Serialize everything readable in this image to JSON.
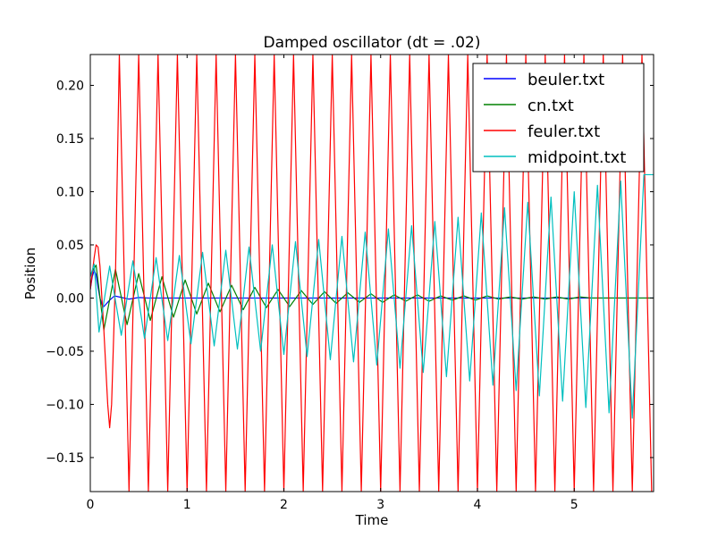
{
  "chart_data": {
    "type": "line",
    "title": "Damped oscillator (dt = .02)",
    "xlabel": "Time",
    "ylabel": "Position",
    "xlim": [
      0,
      5.82
    ],
    "ylim": [
      -0.182,
      0.229
    ],
    "xticks": [
      0,
      1,
      2,
      3,
      4,
      5
    ],
    "yticks": [
      -0.15,
      -0.1,
      -0.05,
      0.0,
      0.05,
      0.1,
      0.15,
      0.2
    ],
    "xtick_labels": [
      "0",
      "1",
      "2",
      "3",
      "4",
      "5"
    ],
    "ytick_labels": [
      "−0.15",
      "−0.10",
      "−0.05",
      "0.00",
      "0.05",
      "0.10",
      "0.15",
      "0.20"
    ],
    "legend_position": "top-right",
    "grid": false,
    "dt": 0.02,
    "series": [
      {
        "name": "beuler.txt",
        "color": "#0000ff",
        "x": [
          0,
          0.02,
          0.04,
          0.06,
          0.08,
          0.1,
          0.12,
          0.14,
          0.16,
          0.2,
          0.25,
          0.3,
          0.4,
          0.5,
          0.6,
          0.8,
          1.0,
          1.5,
          2.0,
          3.0,
          4.0,
          5.0,
          5.82
        ],
        "y": [
          0.008,
          0.02,
          0.026,
          0.022,
          0.01,
          0.0,
          -0.006,
          -0.008,
          -0.006,
          -0.002,
          0.002,
          0.001,
          -0.001,
          0.0005,
          0.0,
          0.0,
          0.0,
          0.0,
          0.0,
          0.0,
          0.0,
          0.0,
          0.0
        ]
      },
      {
        "name": "cn.txt",
        "color": "#008000",
        "x": [
          0,
          0.06,
          0.14,
          0.26,
          0.38,
          0.5,
          0.62,
          0.74,
          0.86,
          0.98,
          1.1,
          1.22,
          1.34,
          1.46,
          1.58,
          1.7,
          1.82,
          1.94,
          2.06,
          2.18,
          2.3,
          2.42,
          2.54,
          2.66,
          2.78,
          2.9,
          3.02,
          3.14,
          3.26,
          3.38,
          3.5,
          3.62,
          3.74,
          3.86,
          3.98,
          4.1,
          4.22,
          4.34,
          4.46,
          4.58,
          4.7,
          4.82,
          4.94,
          5.06,
          5.18,
          5.3,
          5.42,
          5.54,
          5.66,
          5.78,
          5.82
        ],
        "y": [
          0.022,
          0.031,
          -0.03,
          0.027,
          -0.025,
          0.023,
          -0.021,
          0.02,
          -0.018,
          0.017,
          -0.015,
          0.014,
          -0.013,
          0.012,
          -0.011,
          0.01,
          -0.009,
          0.008,
          -0.008,
          0.007,
          -0.006,
          0.006,
          -0.005,
          0.005,
          -0.004,
          0.004,
          -0.004,
          0.003,
          -0.003,
          0.003,
          -0.003,
          0.002,
          -0.002,
          0.002,
          -0.002,
          0.002,
          -0.001,
          0.001,
          -0.001,
          0.001,
          -0.001,
          0.001,
          -0.001,
          0.001,
          0.0,
          0.0,
          0.0,
          0.0,
          0.0,
          0.0,
          0.0
        ]
      },
      {
        "name": "feuler.txt",
        "color": "#ff0000",
        "x": [
          0,
          0.04,
          0.06,
          0.08,
          0.1,
          0.14,
          0.18,
          0.2,
          0.22,
          0.26,
          0.3,
          0.4,
          0.5,
          0.6,
          0.7,
          0.8,
          0.9,
          1.0,
          1.1,
          1.2,
          1.3,
          1.4,
          1.5,
          1.6,
          1.7,
          1.8,
          1.9,
          2.0,
          2.1,
          2.2,
          2.3,
          2.4,
          2.5,
          2.6,
          2.7,
          2.8,
          2.9,
          3.0,
          3.1,
          3.2,
          3.3,
          3.4,
          3.5,
          3.6,
          3.7,
          3.8,
          3.9,
          4.0,
          4.1,
          4.2,
          4.3,
          4.4,
          4.5,
          4.6,
          4.7,
          4.8,
          4.9,
          5.0,
          5.1,
          5.2,
          5.3,
          5.4,
          5.5,
          5.6,
          5.7,
          5.8
        ],
        "y": [
          0.008,
          0.038,
          0.05,
          0.048,
          0.03,
          -0.03,
          -0.1,
          -0.122,
          -0.1,
          0.02,
          0.229,
          -0.182,
          0.229,
          -0.182,
          0.229,
          -0.182,
          0.229,
          -0.182,
          0.229,
          -0.182,
          0.229,
          -0.182,
          0.229,
          -0.182,
          0.229,
          -0.182,
          0.229,
          -0.182,
          0.229,
          -0.182,
          0.229,
          -0.182,
          0.229,
          -0.182,
          0.229,
          -0.182,
          0.229,
          -0.182,
          0.229,
          -0.182,
          0.229,
          -0.182,
          0.229,
          -0.182,
          0.229,
          -0.182,
          0.229,
          -0.182,
          0.229,
          -0.182,
          0.229,
          -0.182,
          0.229,
          -0.182,
          0.229,
          -0.182,
          0.229,
          -0.182,
          0.229,
          -0.182,
          0.229,
          -0.182,
          0.229,
          -0.182,
          0.229,
          -0.182
        ]
      },
      {
        "name": "midpoint.txt",
        "color": "#00bfbf",
        "x": [
          0,
          0.04,
          0.09,
          0.2,
          0.32,
          0.44,
          0.56,
          0.68,
          0.8,
          0.92,
          1.04,
          1.16,
          1.28,
          1.4,
          1.52,
          1.64,
          1.76,
          1.88,
          2.0,
          2.12,
          2.24,
          2.36,
          2.48,
          2.6,
          2.72,
          2.84,
          2.96,
          3.08,
          3.2,
          3.32,
          3.44,
          3.56,
          3.68,
          3.8,
          3.92,
          4.04,
          4.16,
          4.28,
          4.4,
          4.52,
          4.64,
          4.76,
          4.88,
          5.0,
          5.12,
          5.24,
          5.36,
          5.48,
          5.6,
          5.72,
          5.82
        ],
        "y": [
          0.02,
          0.032,
          -0.032,
          0.03,
          -0.035,
          0.035,
          -0.038,
          0.038,
          -0.04,
          0.04,
          -0.043,
          0.043,
          -0.045,
          0.045,
          -0.048,
          0.048,
          -0.05,
          0.05,
          -0.053,
          0.053,
          -0.055,
          0.055,
          -0.058,
          0.058,
          -0.06,
          0.062,
          -0.063,
          0.065,
          -0.066,
          0.068,
          -0.07,
          0.072,
          -0.074,
          0.076,
          -0.078,
          0.08,
          -0.082,
          0.085,
          -0.087,
          0.09,
          -0.092,
          0.095,
          -0.097,
          0.1,
          -0.103,
          0.106,
          -0.108,
          0.11,
          -0.113,
          0.116,
          0.116
        ]
      }
    ]
  }
}
